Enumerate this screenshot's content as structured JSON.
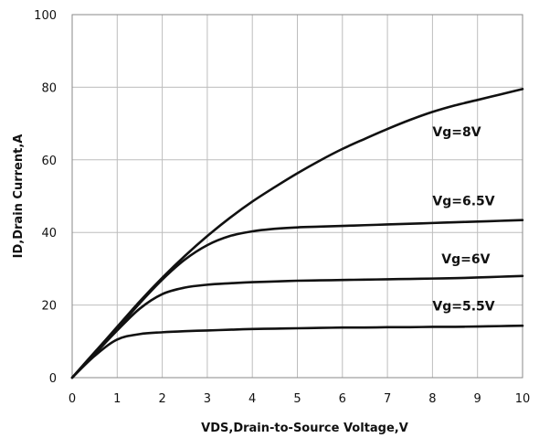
{
  "chart_data": {
    "type": "line",
    "title": "",
    "xlabel": "VDS,Drain-to-Source  Voltage,V",
    "ylabel": "ID,Drain  Current,A",
    "xlim": [
      0,
      10
    ],
    "ylim": [
      0,
      100
    ],
    "x_ticks": [
      "0",
      "1",
      "2",
      "3",
      "4",
      "5",
      "6",
      "7",
      "8",
      "9",
      "10"
    ],
    "y_ticks": [
      "0",
      "20",
      "40",
      "60",
      "80",
      "100"
    ],
    "grid": true,
    "x": [
      0,
      0.5,
      1,
      1.5,
      2,
      2.5,
      3,
      3.5,
      4,
      4.5,
      5,
      5.5,
      6,
      6.5,
      7,
      7.5,
      8,
      8.5,
      9,
      9.5,
      10
    ],
    "series": [
      {
        "name": "Vg=8V",
        "values": [
          0,
          7,
          14,
          21,
          27.5,
          33.5,
          39,
          44,
          48.5,
          52.5,
          56.3,
          59.8,
          63,
          65.8,
          68.5,
          71,
          73.2,
          75,
          76.5,
          78,
          79.5
        ]
      },
      {
        "name": "Vg=6.5V",
        "values": [
          0,
          7,
          13.5,
          20.5,
          27,
          32.5,
          36.5,
          39,
          40.3,
          41,
          41.4,
          41.6,
          41.8,
          42,
          42.2,
          42.4,
          42.6,
          42.8,
          43,
          43.2,
          43.4
        ]
      },
      {
        "name": "Vg=6V",
        "values": [
          0,
          6.5,
          13,
          19,
          23,
          24.8,
          25.6,
          26,
          26.3,
          26.5,
          26.7,
          26.8,
          26.9,
          27,
          27.1,
          27.2,
          27.3,
          27.4,
          27.6,
          27.8,
          28
        ]
      },
      {
        "name": "Vg=5.5V",
        "values": [
          0,
          6,
          10.5,
          12,
          12.5,
          12.8,
          13,
          13.2,
          13.4,
          13.5,
          13.6,
          13.7,
          13.8,
          13.8,
          13.9,
          13.9,
          14,
          14,
          14.1,
          14.2,
          14.3
        ]
      }
    ]
  }
}
